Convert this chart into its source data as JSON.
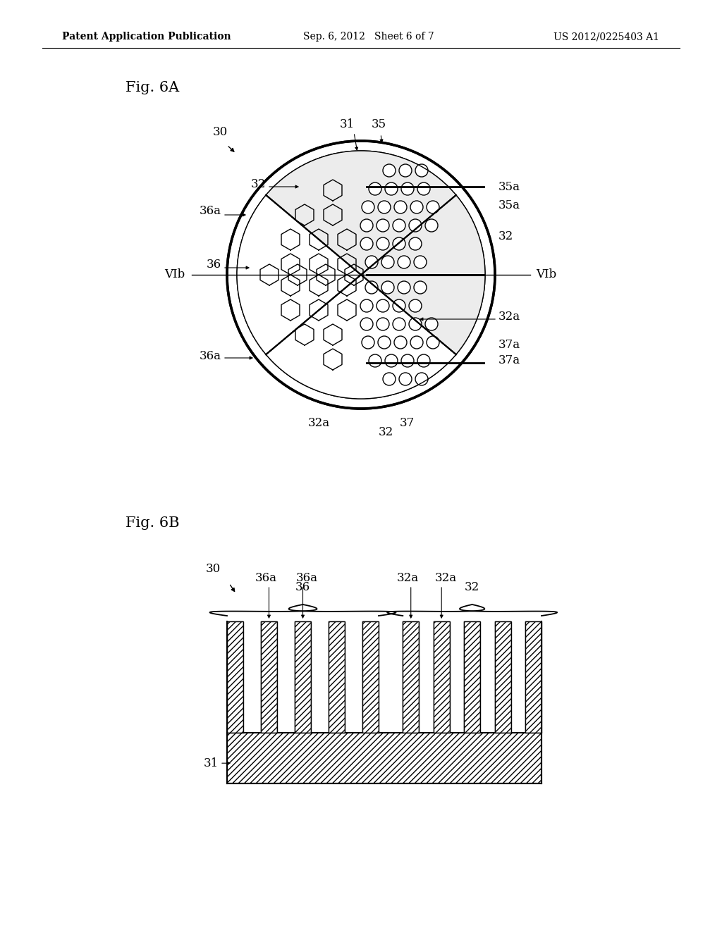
{
  "bg_color": "#ffffff",
  "header_left": "Patent Application Publication",
  "header_center": "Sep. 6, 2012   Sheet 6 of 7",
  "header_right": "US 2012/0225403 A1",
  "fig6a_label": "Fig. 6A",
  "fig6b_label": "Fig. 6B",
  "line_color": "#000000",
  "text_color": "#000000"
}
